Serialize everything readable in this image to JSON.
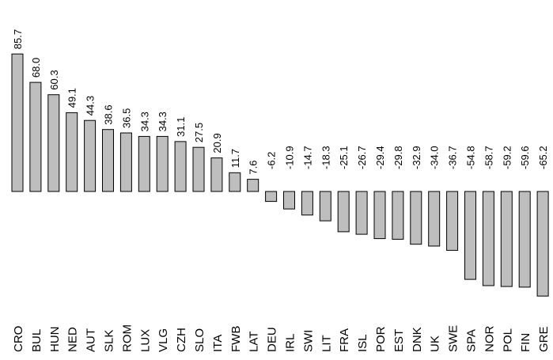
{
  "chart_data": {
    "type": "bar",
    "orientation": "vertical",
    "categories": [
      "CRO",
      "BUL",
      "HUN",
      "NED",
      "AUT",
      "SLK",
      "ROM",
      "LUX",
      "VLG",
      "CZH",
      "SLO",
      "ITA",
      "FWB",
      "LAT",
      "DEU",
      "IRL",
      "SWI",
      "LIT",
      "FRA",
      "ISL",
      "POR",
      "EST",
      "DNK",
      "UK",
      "SWE",
      "SPA",
      "NOR",
      "POL",
      "FIN",
      "GRE"
    ],
    "values": [
      85.7,
      68.0,
      60.3,
      49.1,
      44.3,
      38.6,
      36.5,
      34.3,
      34.3,
      31.1,
      27.5,
      20.9,
      11.7,
      7.6,
      -6.2,
      -10.9,
      -14.7,
      -18.3,
      -25.1,
      -26.7,
      -29.4,
      -29.8,
      -32.9,
      -34.0,
      -36.7,
      -54.8,
      -58.7,
      -59.2,
      -59.6,
      -65.2
    ],
    "value_labels": [
      "85.7",
      "68.0",
      "60.3",
      "49.1",
      "44.3",
      "38.6",
      "36.5",
      "34.3",
      "34.3",
      "31.1",
      "27.5",
      "20.9",
      "11.7",
      "7.6",
      "-6.2",
      "-10.9",
      "-14.7",
      "-18.3",
      "-25.1",
      "-26.7",
      "-29.4",
      "-29.8",
      "-32.9",
      "-34.0",
      "-36.7",
      "-54.8",
      "-58.7",
      "-59.2",
      "-59.6",
      "-65.2"
    ],
    "title": "",
    "xlabel": "",
    "ylabel": "",
    "grid": false,
    "legend": "none",
    "bar_color": "#bebebe",
    "bar_stroke": "#000000"
  }
}
